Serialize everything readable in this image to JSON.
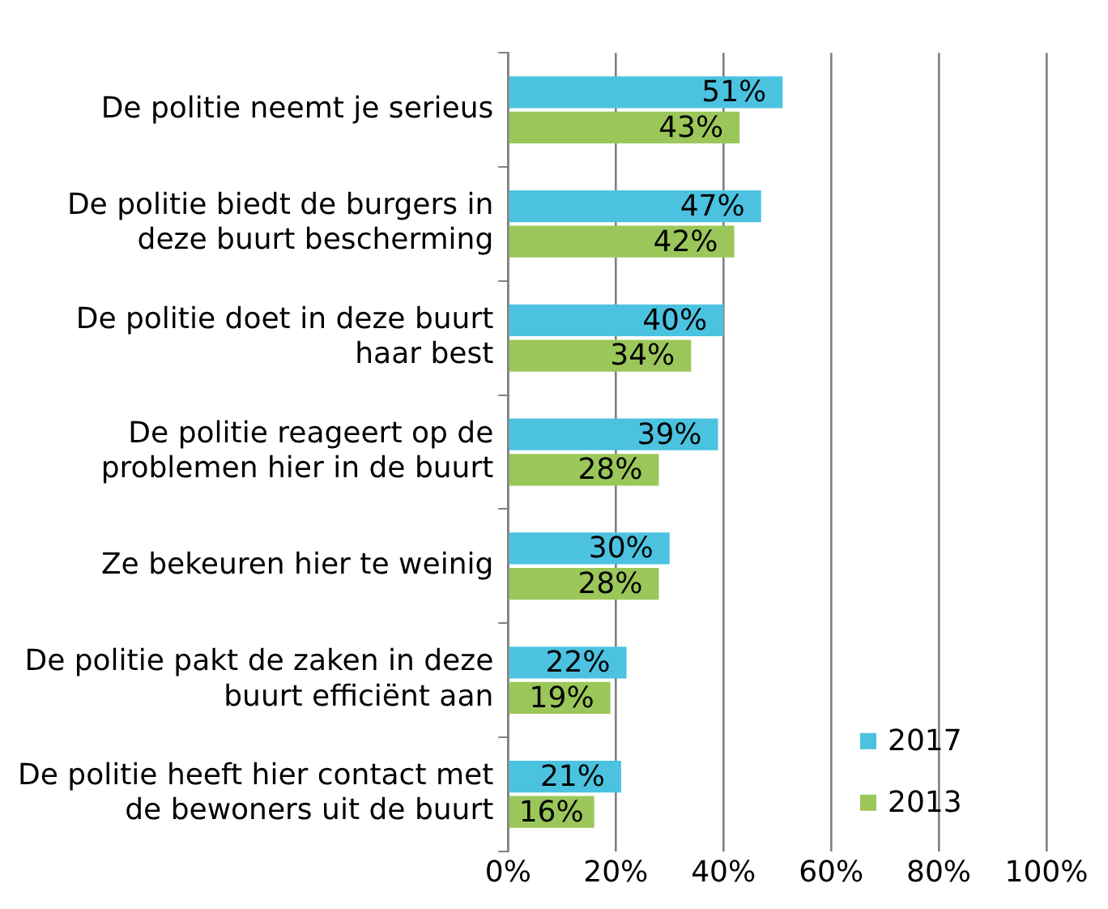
{
  "chart_data": {
    "type": "bar",
    "orientation": "horizontal",
    "categories": [
      "De politie neemt je serieus",
      "De politie biedt de burgers in deze buurt bescherming",
      "De politie doet in deze buurt haar best",
      "De politie reageert op de problemen hier in de buurt",
      "Ze bekeuren hier te weinig",
      "De politie pakt de zaken in deze buurt efficiënt aan",
      "De politie heeft hier contact met de bewoners uit de buurt"
    ],
    "series": [
      {
        "name": "2017",
        "color": "#4bc3e0",
        "values": [
          51,
          47,
          40,
          39,
          30,
          22,
          21
        ],
        "value_labels": [
          "51%",
          "47%",
          "40%",
          "39%",
          "30%",
          "22%",
          "21%"
        ]
      },
      {
        "name": "2013",
        "color": "#9bc75a",
        "values": [
          43,
          42,
          34,
          28,
          28,
          19,
          16
        ],
        "value_labels": [
          "43%",
          "42%",
          "34%",
          "28%",
          "28%",
          "19%",
          "16%"
        ]
      }
    ],
    "xlim": [
      0,
      100
    ],
    "xticks": [
      {
        "value": 0,
        "label": "0%"
      },
      {
        "value": 20,
        "label": "20%"
      },
      {
        "value": 40,
        "label": "40%"
      },
      {
        "value": 60,
        "label": "60%"
      },
      {
        "value": 80,
        "label": "80%"
      },
      {
        "value": 100,
        "label": "100%"
      }
    ],
    "grid": "x",
    "legend": "bottom right"
  }
}
